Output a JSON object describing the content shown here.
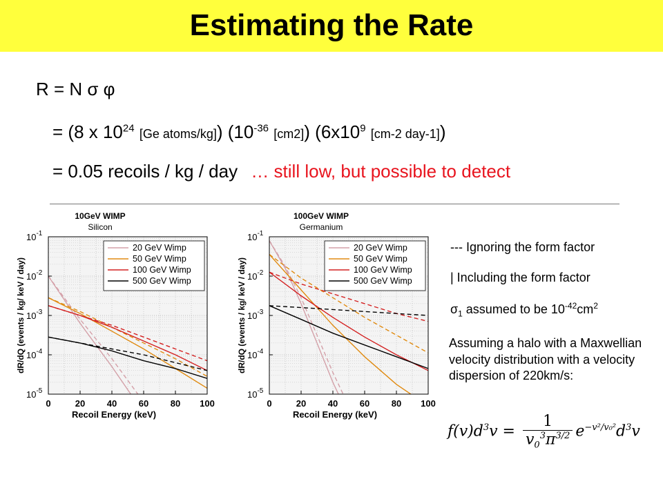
{
  "header": {
    "title": "Estimating the Rate"
  },
  "equations": {
    "line1": {
      "text": "R = N σ φ"
    },
    "line2": {
      "prefix": "= (8 x 10",
      "exp1": "24",
      "unit1": "[Ge atoms/kg]",
      "mid1": ") (10",
      "exp2": "-36",
      "unit2": "[cm2]",
      "mid2": ") (6x10",
      "exp3": "9",
      "unit3": "[cm-2 day-1]",
      "suffix": ")"
    },
    "line3": {
      "text": "= 0.05 recoils / kg / day",
      "comment": "… still low, but possible to detect"
    }
  },
  "notes": {
    "dashed": "--- Ignoring the form factor",
    "solid": "|  Including the form factor",
    "sigma_prefix": "σ",
    "sigma_sub": "1",
    "sigma_text": " assumed to be 10",
    "sigma_exp": "-42",
    "sigma_unit": "cm",
    "sigma_unit_exp": "2",
    "halo": "Assuming a halo with a Maxwellian velocity distribution with a velocity dispersion of 220km/s:"
  },
  "formula": {
    "lhs": "f(v)d",
    "lhs_exp": "3",
    "lhs_v": "v =",
    "num": "1",
    "den_v": "v",
    "den_sub": "0",
    "den_exp": "3",
    "den_pi": "π",
    "den_pi_exp": "3/2",
    "rhs_e": "e",
    "rhs_exp": "−v²/v₀²",
    "rhs_d": "d",
    "rhs_d_exp": "3",
    "rhs_v": "v"
  },
  "chart_data": [
    {
      "type": "line",
      "title": "10GeV WIMP",
      "subtitle": "Silicon",
      "xlabel": "Recoil Energy (keV)",
      "ylabel": "dR/dQ (events / kg/ keV / day)",
      "xlim": [
        0,
        100
      ],
      "ylim_log10": [
        -5,
        -1
      ],
      "log_y": true,
      "grid": true,
      "legend_position": "top-right",
      "xticks": [
        "0",
        "20",
        "40",
        "60",
        "80",
        "100"
      ],
      "yticks": [
        "10^-1",
        "10^-2",
        "10^-3",
        "10^-4",
        "10^-5"
      ],
      "series": [
        {
          "name": "20 GeV Wimp",
          "color": "#d4a0a8",
          "form": "solid",
          "x": [
            0,
            20,
            40,
            57
          ],
          "y_log10": [
            -2.0,
            -3.2,
            -4.3,
            -5.3
          ]
        },
        {
          "name": "20 GeV Wimp",
          "color": "#d4a0a8",
          "form": "dashed",
          "x": [
            0,
            20,
            40,
            60
          ],
          "y_log10": [
            -2.0,
            -3.1,
            -4.1,
            -5.2
          ]
        },
        {
          "name": "50 GeV Wimp",
          "color": "#e08a10",
          "form": "solid",
          "x": [
            0,
            20,
            40,
            60,
            80,
            100
          ],
          "y_log10": [
            -2.55,
            -2.95,
            -3.4,
            -3.85,
            -4.35,
            -4.85
          ]
        },
        {
          "name": "50 GeV Wimp",
          "color": "#e08a10",
          "form": "dashed",
          "x": [
            0,
            20,
            40,
            60,
            80,
            100
          ],
          "y_log10": [
            -2.55,
            -2.9,
            -3.3,
            -3.7,
            -4.1,
            -4.55
          ]
        },
        {
          "name": "100 GeV Wimp",
          "color": "#d42020",
          "form": "solid",
          "x": [
            0,
            20,
            40,
            60,
            80,
            100
          ],
          "y_log10": [
            -2.75,
            -3.0,
            -3.3,
            -3.65,
            -4.0,
            -4.4
          ]
        },
        {
          "name": "100 GeV Wimp",
          "color": "#d42020",
          "form": "dashed",
          "x": [
            0,
            20,
            40,
            60,
            80,
            100
          ],
          "y_log10": [
            -2.75,
            -3.0,
            -3.25,
            -3.55,
            -3.85,
            -4.15
          ]
        },
        {
          "name": "500 GeV Wimp",
          "color": "#000000",
          "form": "solid",
          "x": [
            0,
            20,
            40,
            60,
            80,
            100
          ],
          "y_log10": [
            -3.55,
            -3.7,
            -3.9,
            -4.15,
            -4.35,
            -4.6
          ]
        },
        {
          "name": "500 GeV Wimp",
          "color": "#000000",
          "form": "dashed",
          "x": [
            0,
            20,
            40,
            60,
            80,
            100
          ],
          "y_log10": [
            -3.55,
            -3.7,
            -3.85,
            -4.0,
            -4.2,
            -4.4
          ]
        }
      ]
    },
    {
      "type": "line",
      "title": "100GeV WIMP",
      "subtitle": "Germanium",
      "xlabel": "Recoil Energy (keV)",
      "ylabel": "dR/dQ (events / kg/ keV / day)",
      "xlim": [
        0,
        100
      ],
      "ylim_log10": [
        -5,
        -1
      ],
      "log_y": true,
      "grid": true,
      "legend_position": "top-right",
      "xticks": [
        "0",
        "20",
        "40",
        "60",
        "80",
        "100"
      ],
      "yticks": [
        "10^-1",
        "10^-2",
        "10^-3",
        "10^-4",
        "10^-5"
      ],
      "series": [
        {
          "name": "20 GeV Wimp",
          "color": "#d4a0a8",
          "form": "solid",
          "x": [
            0,
            10,
            20,
            30,
            40,
            47
          ],
          "y_log10": [
            -1.1,
            -1.8,
            -2.7,
            -3.7,
            -4.7,
            -5.3
          ]
        },
        {
          "name": "20 GeV Wimp",
          "color": "#d4a0a8",
          "form": "dashed",
          "x": [
            0,
            10,
            20,
            30,
            40,
            50
          ],
          "y_log10": [
            -1.1,
            -1.75,
            -2.55,
            -3.5,
            -4.45,
            -5.3
          ]
        },
        {
          "name": "50 GeV Wimp",
          "color": "#e08a10",
          "form": "solid",
          "x": [
            0,
            20,
            40,
            60,
            80,
            100
          ],
          "y_log10": [
            -1.45,
            -2.35,
            -3.25,
            -4.05,
            -4.75,
            -5.3
          ]
        },
        {
          "name": "50 GeV Wimp",
          "color": "#e08a10",
          "form": "dashed",
          "x": [
            0,
            20,
            40,
            60,
            80,
            100
          ],
          "y_log10": [
            -1.45,
            -2.05,
            -2.55,
            -3.05,
            -3.5,
            -3.95
          ]
        },
        {
          "name": "100 GeV Wimp",
          "color": "#d42020",
          "form": "solid",
          "x": [
            0,
            20,
            40,
            60,
            80,
            100
          ],
          "y_log10": [
            -1.9,
            -2.5,
            -3.05,
            -3.55,
            -4.0,
            -4.4
          ]
        },
        {
          "name": "100 GeV Wimp",
          "color": "#d42020",
          "form": "dashed",
          "x": [
            0,
            20,
            40,
            60,
            80,
            100
          ],
          "y_log10": [
            -1.9,
            -2.2,
            -2.45,
            -2.7,
            -2.95,
            -3.15
          ]
        },
        {
          "name": "500 GeV Wimp",
          "color": "#000000",
          "form": "solid",
          "x": [
            0,
            20,
            40,
            60,
            80,
            100
          ],
          "y_log10": [
            -2.75,
            -3.1,
            -3.45,
            -3.75,
            -4.05,
            -4.35
          ]
        },
        {
          "name": "500 GeV Wimp",
          "color": "#000000",
          "form": "dashed",
          "x": [
            0,
            20,
            40,
            60,
            80,
            100
          ],
          "y_log10": [
            -2.75,
            -2.8,
            -2.85,
            -2.9,
            -2.95,
            -3.0
          ]
        }
      ]
    }
  ]
}
